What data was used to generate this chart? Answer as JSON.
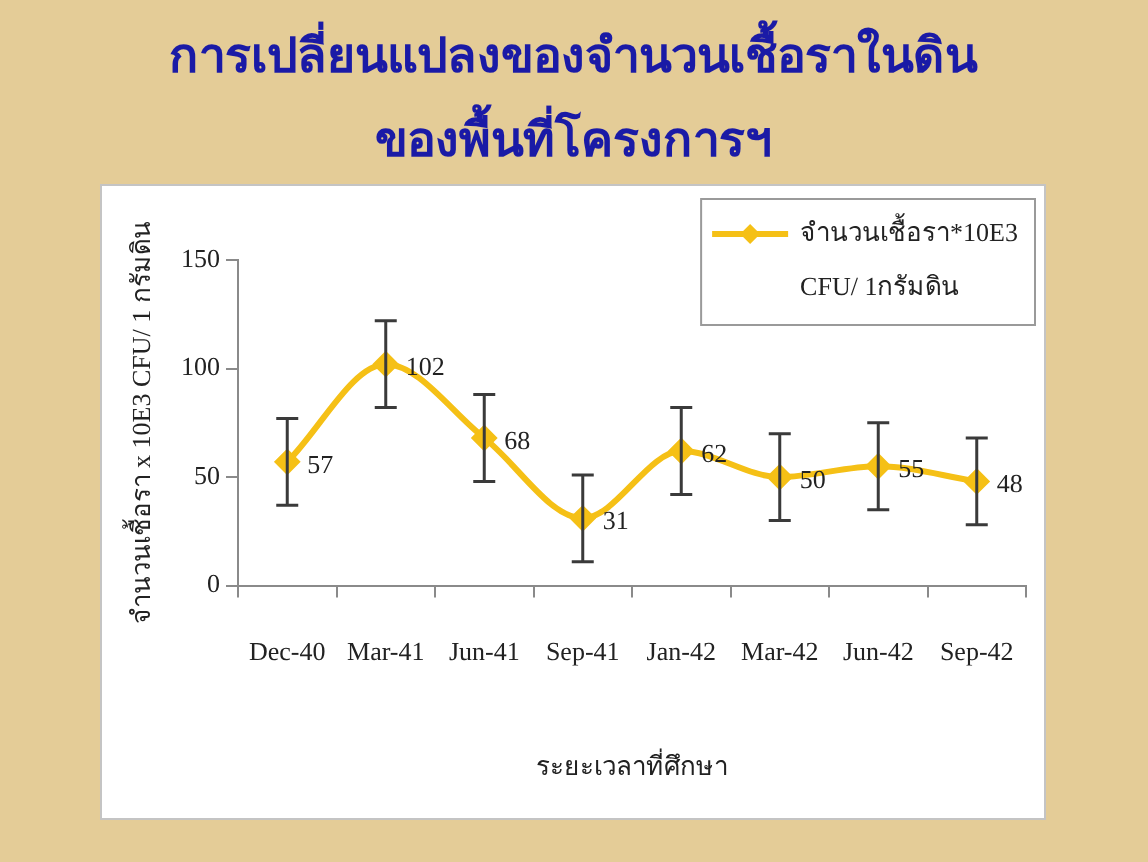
{
  "chart_data": {
    "type": "line",
    "title": "การเปลี่ยนแปลงของจำนวนเชื้อราในดิน ของพื้นที่โครงการฯ",
    "xlabel": "ระยะเวลาที่ศึกษา",
    "ylabel": "จำนวนเชื้อรา x 10E3 CFU/ 1 กรัมดิน",
    "categories": [
      "Dec-40",
      "Mar-41",
      "Jun-41",
      "Sep-41",
      "Jan-42",
      "Mar-42",
      "Jun-42",
      "Sep-42"
    ],
    "series": [
      {
        "name": "จำนวนเชื้อรา*10E3 CFU/ 1กรัมดิน",
        "color": "#f5c016",
        "values": [
          57,
          102,
          68,
          31,
          62,
          50,
          55,
          48
        ],
        "errors": [
          20,
          20,
          20,
          20,
          20,
          20,
          20,
          20
        ]
      }
    ],
    "ylim": [
      0,
      150
    ],
    "yticks": [
      0,
      50,
      100,
      150
    ],
    "grid": false,
    "legend": "top right",
    "marker": "diamond",
    "line_style": "solid",
    "data_labels": true
  }
}
